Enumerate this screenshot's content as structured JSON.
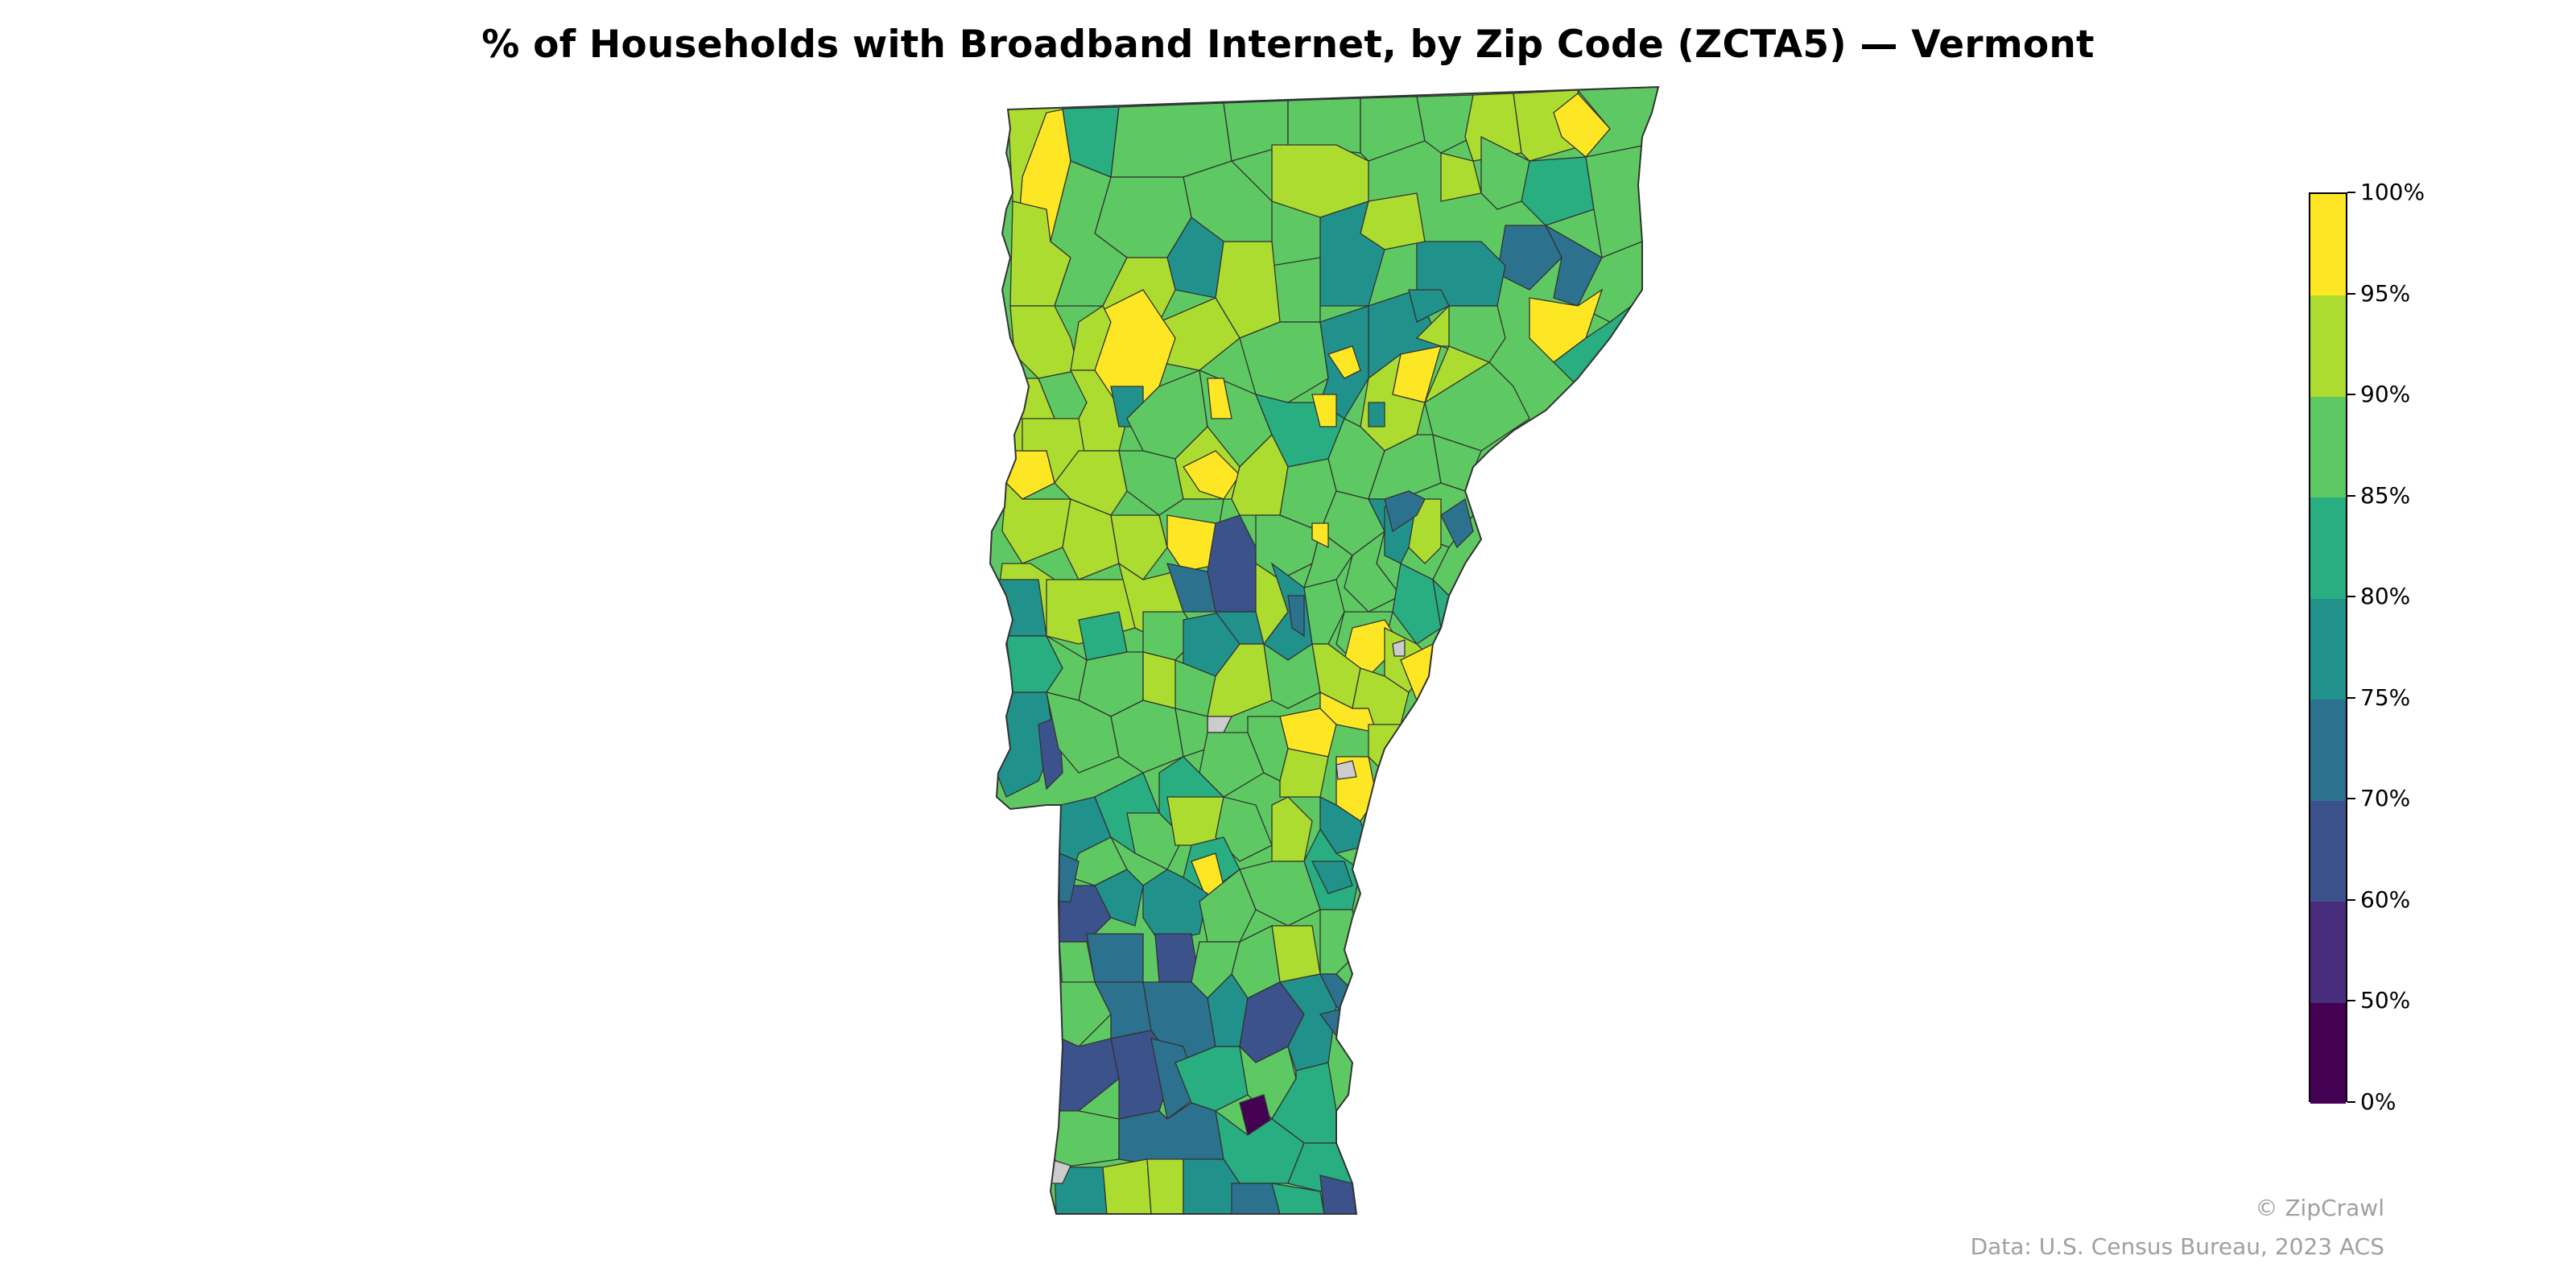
{
  "map": {
    "title": "% of Households with Broadband Internet, by Zip Code (ZCTA5) — Vermont",
    "region": "Vermont",
    "missing_color": "#cccccc",
    "border_color": "#333333"
  },
  "legend": {
    "bins": [
      {
        "label": "0%",
        "color": "#440154"
      },
      {
        "label": "50%",
        "color": "#472d7b"
      },
      {
        "label": "60%",
        "color": "#3b528b"
      },
      {
        "label": "70%",
        "color": "#2c728e"
      },
      {
        "label": "75%",
        "color": "#21918c"
      },
      {
        "label": "80%",
        "color": "#28ae80"
      },
      {
        "label": "85%",
        "color": "#5ec962"
      },
      {
        "label": "90%",
        "color": "#addc30"
      },
      {
        "label": "95%",
        "color": "#fde725"
      },
      {
        "label": "100%",
        "color": ""
      }
    ]
  },
  "credits": {
    "brand": "© ZipCrawl",
    "source": "Data: U.S. Census Bureau, 2023 ACS"
  }
}
